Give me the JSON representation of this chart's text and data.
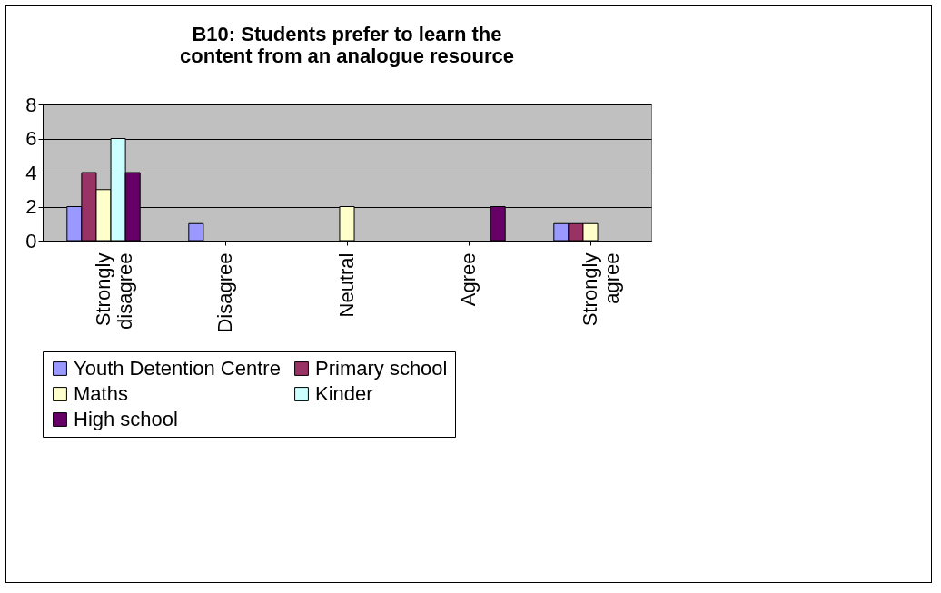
{
  "chart_data": {
    "type": "bar",
    "title": "B10: Students prefer to learn the content from an analogue resource",
    "categories": [
      "Strongly disagree",
      "Disagree",
      "Neutral",
      "Agree",
      "Strongly agree"
    ],
    "series": [
      {
        "name": "Youth Detention Centre",
        "color": "#9999ff",
        "values": [
          2,
          1,
          0,
          0,
          1
        ]
      },
      {
        "name": "Primary school",
        "color": "#993366",
        "values": [
          4,
          0,
          0,
          0,
          1
        ]
      },
      {
        "name": "Maths",
        "color": "#ffffcc",
        "values": [
          3,
          0,
          2,
          0,
          1
        ]
      },
      {
        "name": "Kinder",
        "color": "#ccffff",
        "values": [
          6,
          0,
          0,
          0,
          0
        ]
      },
      {
        "name": "High school",
        "color": "#660066",
        "values": [
          4,
          0,
          0,
          2,
          0
        ]
      }
    ],
    "ylim": [
      0,
      8
    ],
    "yticks": [
      0,
      2,
      4,
      6,
      8
    ],
    "grid": "y",
    "legend": "bottom"
  }
}
